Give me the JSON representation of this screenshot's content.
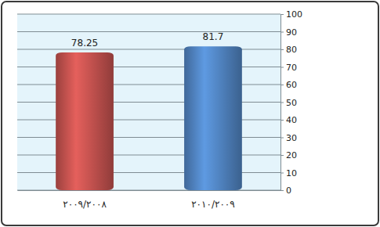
{
  "chart_data": {
    "type": "bar",
    "categories": [
      "٢٠٠٩/٢٠٠٨",
      "٢٠١٠/٢٠٠٩"
    ],
    "values": [
      78.25,
      81.7
    ],
    "colors": [
      "#c0504d",
      "#4f81bd"
    ],
    "ylim": [
      0,
      100
    ],
    "yticks": [
      0,
      10,
      20,
      30,
      40,
      50,
      60,
      70,
      80,
      90,
      100
    ],
    "grid": true,
    "data_labels": true
  }
}
